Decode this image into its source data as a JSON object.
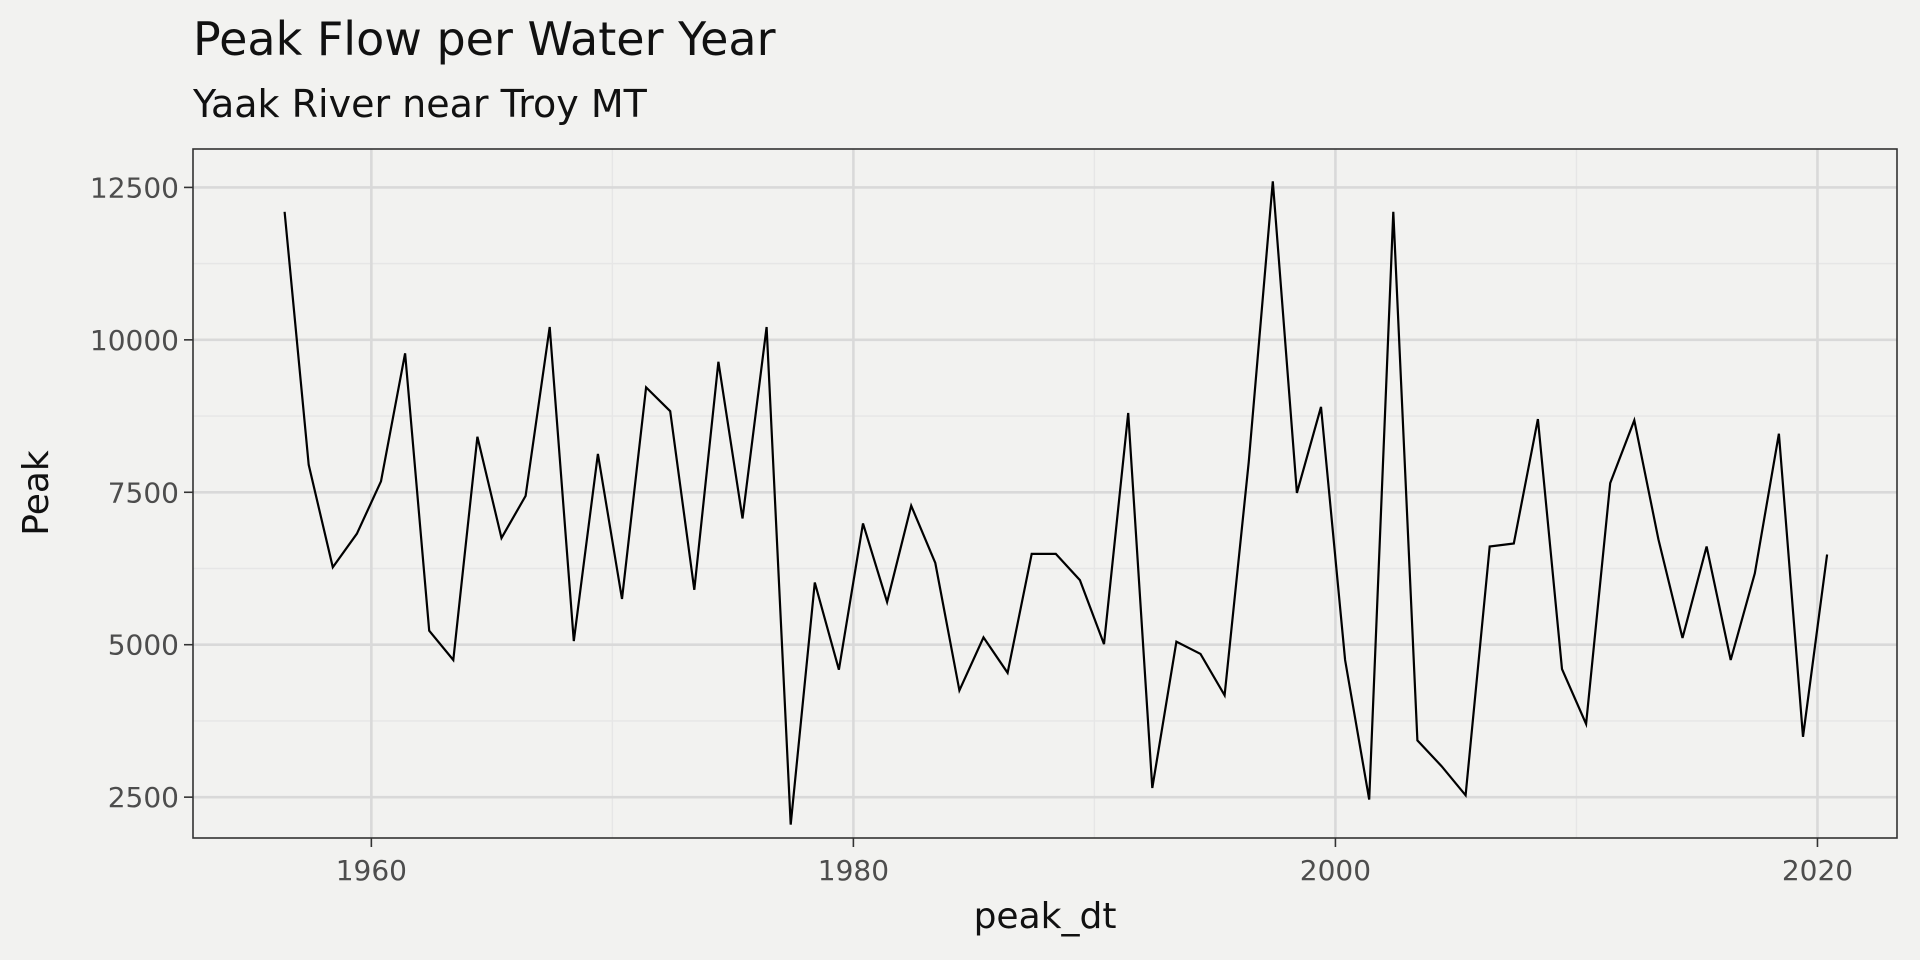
{
  "chart_data": {
    "type": "line",
    "title": "Peak Flow per Water Year",
    "subtitle": "Yaak River near Troy MT",
    "xlabel": "peak_dt",
    "ylabel": "Peak",
    "xlim": [
      1952.6,
      2023.3
    ],
    "ylim": [
      1830,
      13130
    ],
    "x_ticks": [
      1960,
      1980,
      2000,
      2020
    ],
    "x_tick_labels": [
      "1960",
      "1980",
      "2000",
      "2020"
    ],
    "y_ticks": [
      2500,
      5000,
      7500,
      10000,
      12500
    ],
    "y_tick_labels": [
      "2500",
      "5000",
      "7500",
      "10000",
      "12500"
    ],
    "grid": true,
    "series": [
      {
        "name": "Peak",
        "x": [
          1956.4,
          1957.4,
          1958.4,
          1959.4,
          1960.4,
          1961.4,
          1962.4,
          1963.4,
          1964.4,
          1965.4,
          1966.4,
          1967.4,
          1968.4,
          1969.4,
          1970.4,
          1971.4,
          1972.4,
          1973.4,
          1974.4,
          1975.4,
          1976.4,
          1977.4,
          1978.4,
          1979.4,
          1980.4,
          1981.4,
          1982.4,
          1983.4,
          1984.4,
          1985.4,
          1986.4,
          1987.4,
          1988.4,
          1989.4,
          1990.4,
          1991.4,
          1992.4,
          1993.4,
          1994.4,
          1995.4,
          1996.4,
          1997.4,
          1998.4,
          1999.4,
          2000.4,
          2001.4,
          2002.4,
          2003.4,
          2004.4,
          2005.4,
          2006.4,
          2007.4,
          2008.4,
          2009.4,
          2010.4,
          2011.4,
          2012.4,
          2013.4,
          2014.4,
          2015.4,
          2016.4,
          2017.4,
          2018.4,
          2019.4,
          2020.4
        ],
        "values": [
          12100,
          7950,
          6270,
          6820,
          7680,
          9780,
          5230,
          4750,
          8410,
          6750,
          7440,
          10210,
          5060,
          8130,
          5750,
          9220,
          8830,
          5900,
          9640,
          7070,
          10210,
          2050,
          6020,
          4590,
          6990,
          5700,
          7280,
          6340,
          4250,
          5120,
          4540,
          6490,
          6490,
          6060,
          5010,
          8800,
          2650,
          5050,
          4850,
          4170,
          7990,
          12600,
          7490,
          8900,
          4750,
          2460,
          12100,
          3430,
          3010,
          2530,
          6610,
          6660,
          8700,
          4600,
          3700,
          7650,
          8680,
          6730,
          5110,
          6610,
          4750,
          6170,
          8460,
          3490,
          6480
        ]
      }
    ]
  }
}
